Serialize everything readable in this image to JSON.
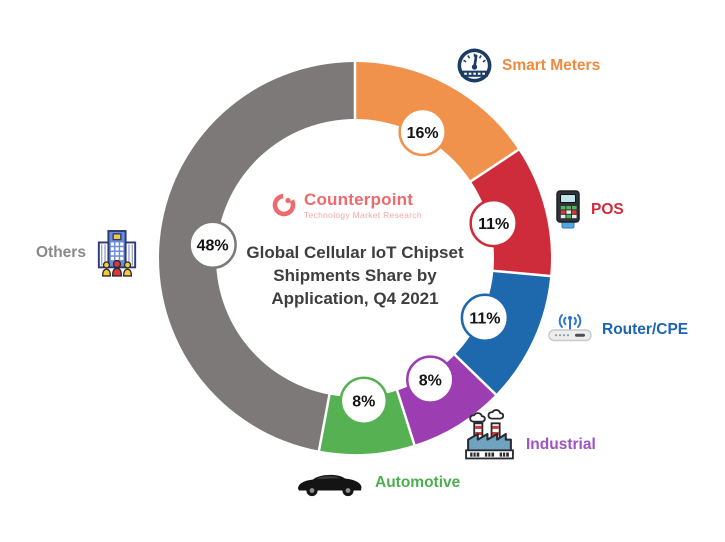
{
  "branding": {
    "name": "Counterpoint",
    "subtitle": "Technology Market Research",
    "accent_color": "#EE6A6E"
  },
  "chart_data": {
    "type": "pie",
    "subtype": "donut",
    "title": "Global Cellular IoT Chipset Shipments Share by Application, Q4 2021",
    "title_lines": [
      "Global Cellular IoT Chipset",
      "Shipments Share by",
      "Application, Q4 2021"
    ],
    "start_angle_deg": 0,
    "direction": "clockwise",
    "values_unit": "%",
    "legend_position": "around",
    "segments": [
      {
        "label": "Smart Meters",
        "value": 16,
        "display": "16%",
        "color": "#F0924C",
        "label_color": "#F08A3E",
        "icon": "smart-meter-gauge-icon"
      },
      {
        "label": "POS",
        "value": 11,
        "display": "11%",
        "color": "#CE2B3B",
        "label_color": "#D22B39",
        "icon": "pos-terminal-icon"
      },
      {
        "label": "Router/CPE",
        "value": 11,
        "display": "11%",
        "color": "#1E68AD",
        "label_color": "#1C64B4",
        "icon": "router-icon"
      },
      {
        "label": "Industrial",
        "value": 8,
        "display": "8%",
        "color": "#9C3DB2",
        "label_color": "#9D53C3",
        "icon": "factory-icon"
      },
      {
        "label": "Automotive",
        "value": 8,
        "display": "8%",
        "color": "#55B151",
        "label_color": "#4CAF50",
        "icon": "car-icon"
      },
      {
        "label": "Others",
        "value": 48,
        "display": "48%",
        "color": "#7E7979",
        "label_color": "#8A8888",
        "icon": "building-people-icon"
      }
    ]
  }
}
